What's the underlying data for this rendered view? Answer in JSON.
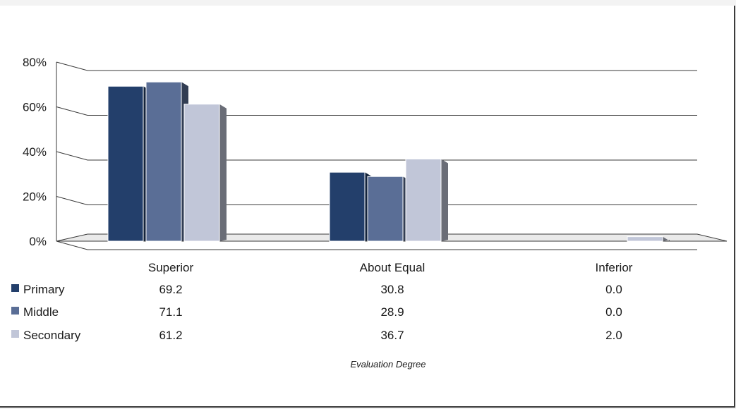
{
  "chart_data": {
    "type": "bar",
    "categories": [
      "Superior",
      "About Equal",
      "Inferior"
    ],
    "series": [
      {
        "name": "Primary",
        "values": [
          69.2,
          30.8,
          0.0
        ],
        "display": [
          "69.2",
          "30.8",
          "0.0"
        ],
        "color": "#233f6b"
      },
      {
        "name": "Middle",
        "values": [
          71.1,
          28.9,
          0.0
        ],
        "display": [
          "71.1",
          "28.9",
          "0.0"
        ],
        "color": "#5a6e96"
      },
      {
        "name": "Secondary",
        "values": [
          61.2,
          36.7,
          2.0
        ],
        "display": [
          "61.2",
          "36.7",
          "2.0"
        ],
        "color": "#c1c6d8"
      }
    ],
    "yticks": [
      "0%",
      "20%",
      "40%",
      "60%",
      "80%"
    ],
    "ylim": [
      0,
      80
    ],
    "xlabel": "Evaluation Degree",
    "ylabel": "",
    "grid": true,
    "legend": "data-table-below"
  }
}
